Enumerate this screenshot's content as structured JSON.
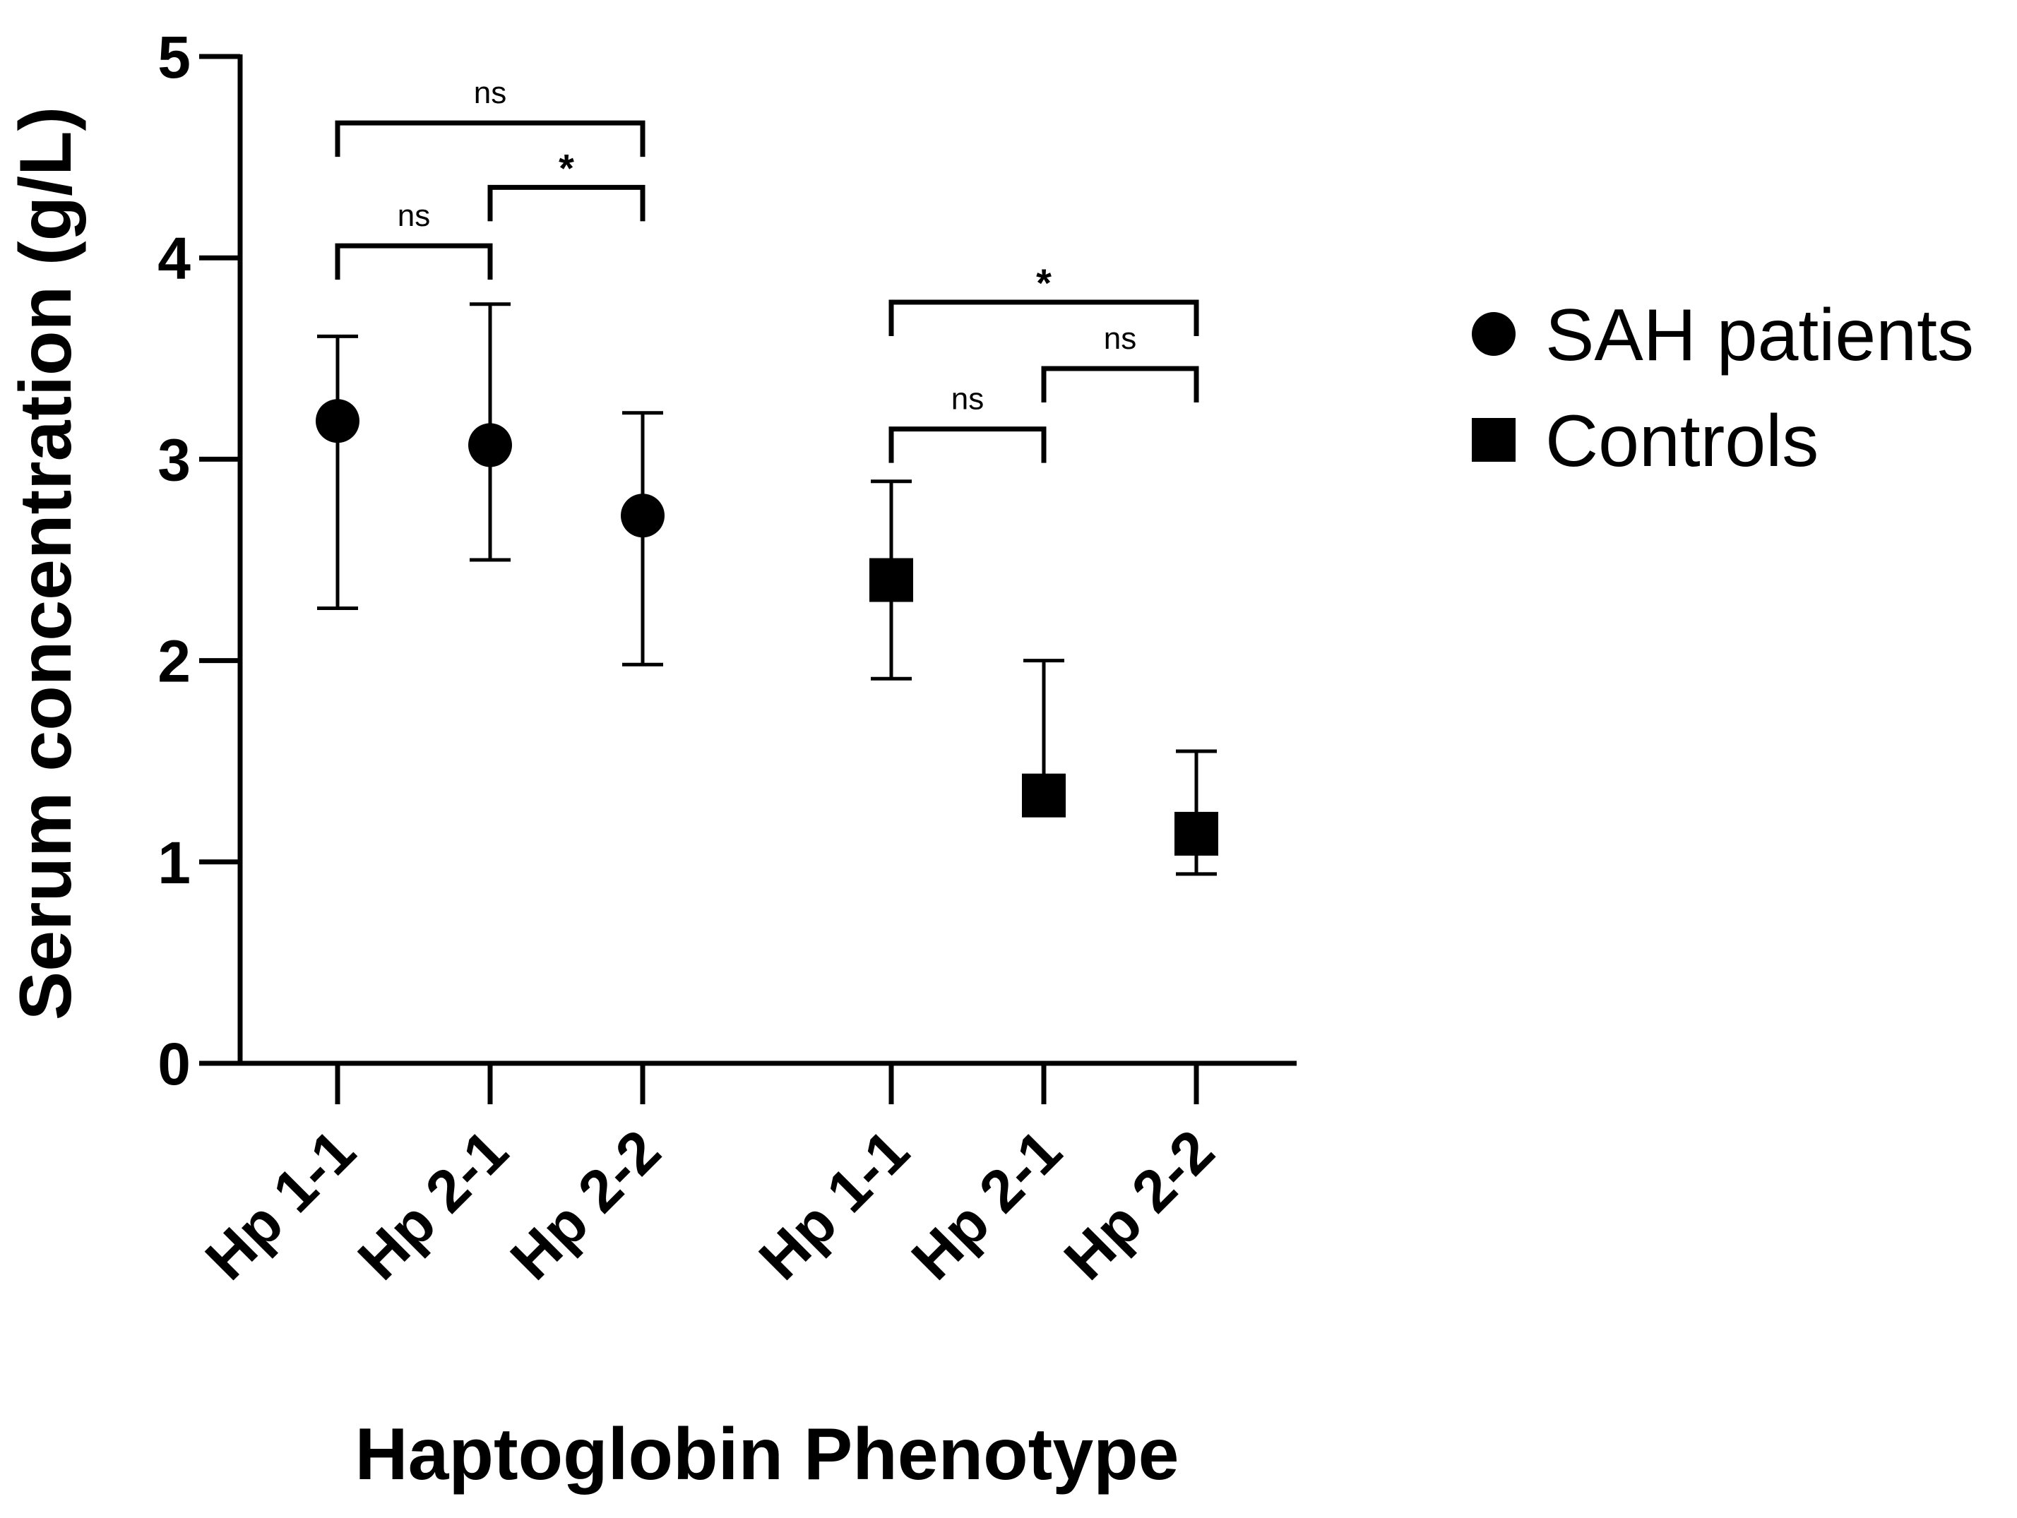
{
  "chart_data": {
    "type": "scatter",
    "title": "",
    "xlabel": "Haptoglobin Phenotype",
    "ylabel": "Serum concentration (g/L)",
    "ylim": [
      0,
      5
    ],
    "yticks": [
      "0",
      "1",
      "2",
      "3",
      "4",
      "5"
    ],
    "grid": false,
    "legend_position": "right",
    "categories": [
      "Hp 1-1",
      "Hp 2-1",
      "Hp 2-2",
      "Hp 1-1",
      "Hp 2-1",
      "Hp 2-2"
    ],
    "series": [
      {
        "name": "SAH patients",
        "marker": "circle",
        "category_index": [
          0,
          1,
          2
        ],
        "values": [
          3.19,
          3.07,
          2.72
        ],
        "error_low": [
          2.26,
          2.5,
          1.98
        ],
        "error_high": [
          3.61,
          3.77,
          3.23
        ]
      },
      {
        "name": "Controls",
        "marker": "square",
        "category_index": [
          3,
          4,
          5
        ],
        "values": [
          2.4,
          1.33,
          1.14
        ],
        "error_low": [
          1.91,
          1.33,
          0.94
        ],
        "error_high": [
          2.89,
          2.0,
          1.55
        ]
      }
    ],
    "comparisons": [
      {
        "from": 0,
        "to": 2,
        "label": "ns",
        "y": 4.67
      },
      {
        "from": 1,
        "to": 2,
        "label": "*",
        "y": 4.35
      },
      {
        "from": 0,
        "to": 1,
        "label": "ns",
        "y": 4.06
      },
      {
        "from": 3,
        "to": 5,
        "label": "*",
        "y": 3.78
      },
      {
        "from": 4,
        "to": 5,
        "label": "ns",
        "y": 3.45
      },
      {
        "from": 3,
        "to": 4,
        "label": "ns",
        "y": 3.15
      }
    ]
  }
}
